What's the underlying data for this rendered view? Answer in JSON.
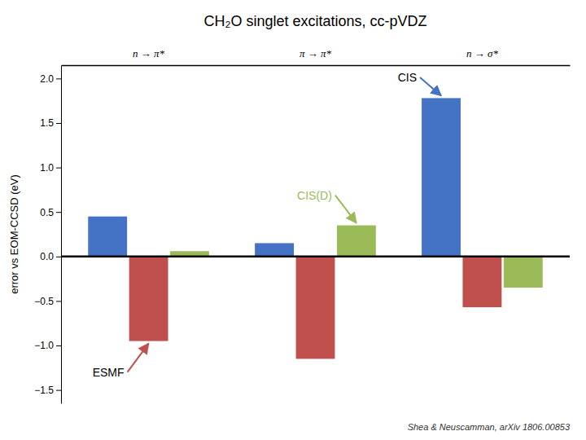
{
  "chart_data": {
    "type": "bar",
    "title": "CH₂O singlet excitations, cc-pVDZ",
    "y_label": "error vs EOM-CCSD (eV)",
    "categories": [
      "n → π*",
      "π → π*",
      "n → σ*"
    ],
    "series": [
      {
        "name": "CIS",
        "color": "#4472C4",
        "values": [
          0.45,
          0.15,
          1.78
        ]
      },
      {
        "name": "ESMF",
        "color": "#C0504D",
        "values": [
          -0.95,
          -1.15,
          -0.57
        ]
      },
      {
        "name": "CIS(D)",
        "color": "#9BBB59",
        "values": [
          0.06,
          0.35,
          -0.35
        ]
      }
    ],
    "ylim": [
      -1.65,
      2.15
    ],
    "yticks": [
      {
        "value": -1.5,
        "label": "−1.5"
      },
      {
        "value": -1.0,
        "label": "−1.0"
      },
      {
        "value": -0.5,
        "label": "−0.5"
      },
      {
        "value": 0.0,
        "label": "0.0"
      },
      {
        "value": 0.5,
        "label": "0.5"
      },
      {
        "value": 1.0,
        "label": "1.0"
      },
      {
        "value": 1.5,
        "label": "1.5"
      },
      {
        "value": 2.0,
        "label": "2.0"
      }
    ],
    "grid": false,
    "annotations": [
      {
        "text": "CIS(D)",
        "category": "π → π*",
        "color": "#9BBB59"
      },
      {
        "text": "CIS",
        "category": "n → σ*",
        "color": "#000000"
      },
      {
        "text": "ESMF",
        "category": "n → π*",
        "color": "#000000"
      },
      {
        "text": "Shea & Neuscamman, arXiv 1806.00853"
      }
    ]
  }
}
